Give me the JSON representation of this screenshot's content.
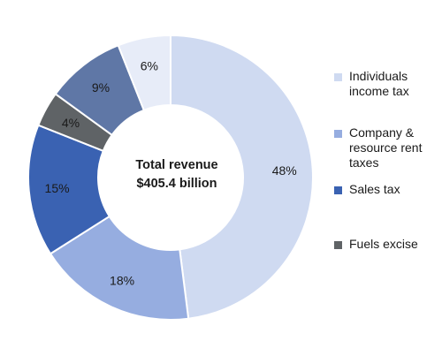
{
  "chart_data": {
    "type": "pie",
    "variant": "donut",
    "center_label": [
      "Total revenue",
      "$405.4 billion"
    ],
    "slices": [
      {
        "name": "Individuals income tax",
        "value": 48,
        "label": "48%",
        "color": "#cfdaf1"
      },
      {
        "name": "Company & resource rent taxes",
        "value": 18,
        "label": "18%",
        "color": "#96ade0"
      },
      {
        "name": "Sales tax",
        "value": 15,
        "label": "15%",
        "color": "#3a62b2"
      },
      {
        "name": "",
        "value": 4,
        "label": "4%",
        "color": "#5f6366"
      },
      {
        "name": "",
        "value": 9,
        "label": "9%",
        "color": "#5f77a6"
      },
      {
        "name": "",
        "value": 6,
        "label": "6%",
        "color": "#e7ecf8"
      }
    ],
    "legend": {
      "placement": "right",
      "items": [
        {
          "text": "Individuals income tax",
          "color": "#cfdaf1"
        },
        {
          "text": "Company & resource rent taxes",
          "color": "#96ade0"
        },
        {
          "text": "Sales tax",
          "color": "#3a62b2"
        },
        {
          "text": "Fuels excise",
          "color": "#5f6366"
        }
      ]
    }
  }
}
